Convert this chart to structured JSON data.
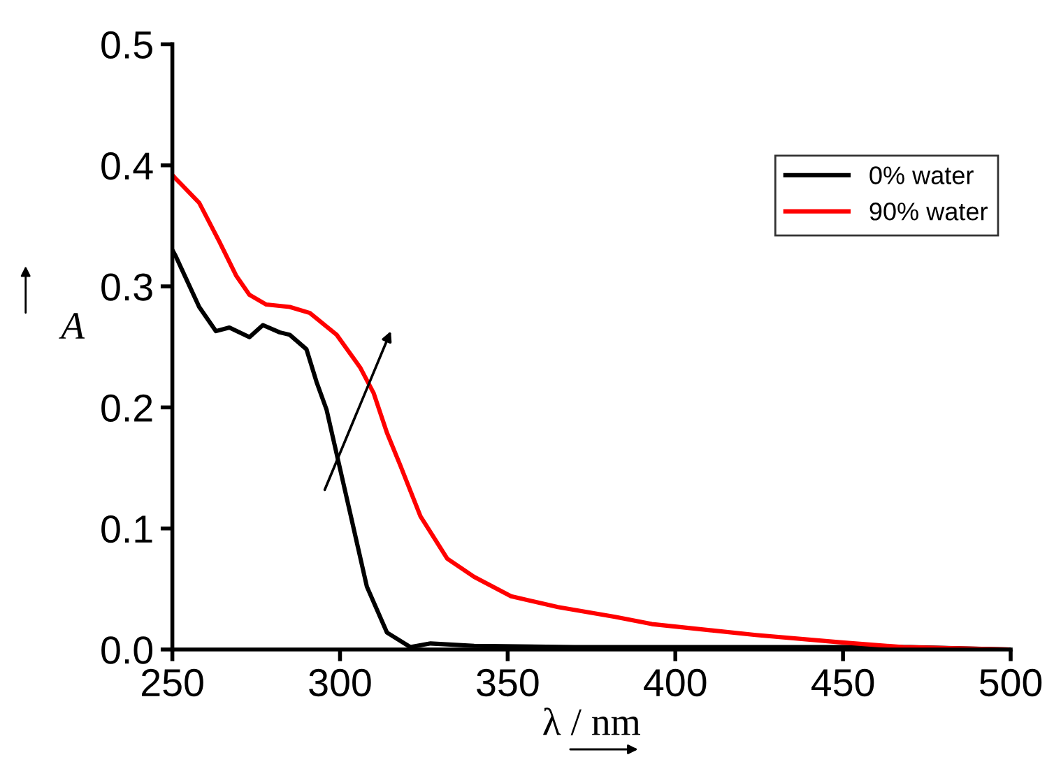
{
  "chart_data": {
    "type": "line",
    "xlabel": "λ / nm",
    "ylabel": "A",
    "xlim": [
      250,
      500
    ],
    "ylim": [
      0,
      0.5
    ],
    "xticks": [
      250,
      300,
      350,
      400,
      450,
      500
    ],
    "yticks": [
      {
        "value": 0,
        "label": "0.0"
      },
      {
        "value": 0.1,
        "label": "0.1"
      },
      {
        "value": 0.2,
        "label": "0.2"
      },
      {
        "value": 0.3,
        "label": "0.3"
      },
      {
        "value": 0.4,
        "label": "0.4"
      },
      {
        "value": 0.5,
        "label": "0.5"
      }
    ],
    "grid": false,
    "legend": "right",
    "line_style": "solid",
    "marker": "none",
    "series": [
      {
        "name": "0% water",
        "color": "#000000",
        "x": [
          250,
          251,
          258,
          263,
          267,
          273,
          277,
          282,
          285,
          290,
          293,
          296,
          303,
          308,
          314,
          321,
          327,
          340,
          370,
          420,
          470,
          500
        ],
        "values": [
          0.33,
          0.325,
          0.283,
          0.263,
          0.266,
          0.258,
          0.268,
          0.262,
          0.26,
          0.248,
          0.221,
          0.198,
          0.113,
          0.052,
          0.014,
          0.002,
          0.005,
          0.003,
          0.002,
          0.002,
          0.002,
          0.0
        ]
      },
      {
        "name": "90% water",
        "color": "#ff0000",
        "x": [
          250,
          251,
          258,
          264,
          269,
          273,
          278,
          285,
          291,
          299,
          306,
          310,
          314,
          318,
          324,
          332,
          340,
          351,
          365,
          382,
          393,
          424,
          449,
          468,
          499
        ],
        "values": [
          0.392,
          0.389,
          0.369,
          0.337,
          0.309,
          0.293,
          0.285,
          0.283,
          0.278,
          0.26,
          0.233,
          0.212,
          0.179,
          0.152,
          0.11,
          0.075,
          0.06,
          0.044,
          0.035,
          0.027,
          0.021,
          0.012,
          0.006,
          0.002,
          0.0
        ]
      }
    ]
  }
}
